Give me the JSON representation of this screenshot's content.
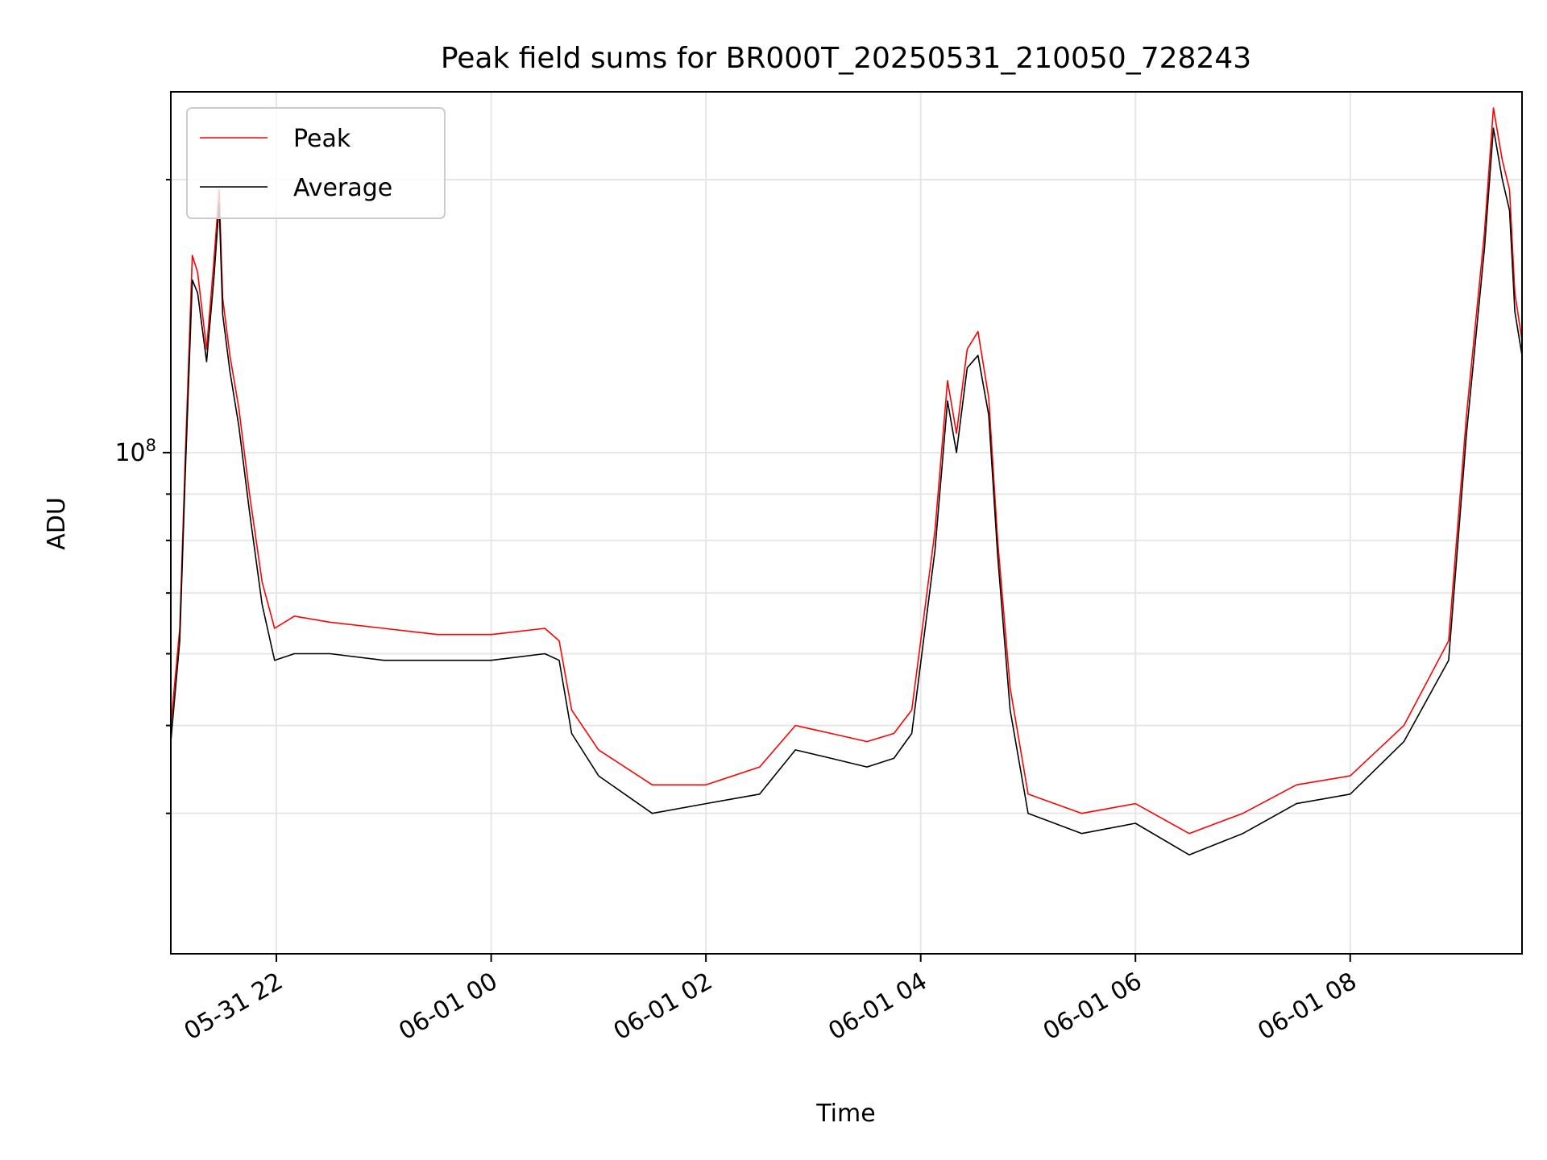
{
  "chart_data": {
    "type": "line",
    "title": "Peak field sums for BR000T_20250531_210050_728243",
    "xlabel": "Time",
    "ylabel": "ADU",
    "y_scale": "log",
    "ylim": [
      28000000,
      250000000
    ],
    "xlim": [
      "2025-05-31 21:01",
      "2025-06-01 09:36"
    ],
    "grid": true,
    "legend_position": "top-left",
    "x_ticks": [
      {
        "t": "2025-05-31 22:00",
        "label": "05-31 22"
      },
      {
        "t": "2025-06-01 00:00",
        "label": "06-01 00"
      },
      {
        "t": "2025-06-01 02:00",
        "label": "06-01 02"
      },
      {
        "t": "2025-06-01 04:00",
        "label": "06-01 04"
      },
      {
        "t": "2025-06-01 06:00",
        "label": "06-01 06"
      },
      {
        "t": "2025-06-01 08:00",
        "label": "06-01 08"
      }
    ],
    "y_major_ticks": [
      {
        "value": 100000000,
        "label_base": "10",
        "label_exp": "8"
      }
    ],
    "y_minor_ticks": [
      40000000,
      50000000,
      60000000,
      70000000,
      80000000,
      90000000,
      200000000
    ],
    "series": [
      {
        "name": "Peak",
        "color": "#ff0000",
        "points": [
          [
            "2025-05-31 21:01",
            50000000
          ],
          [
            "2025-05-31 21:06",
            64000000
          ],
          [
            "2025-05-31 21:09",
            98000000
          ],
          [
            "2025-05-31 21:13",
            165000000
          ],
          [
            "2025-05-31 21:16",
            158000000
          ],
          [
            "2025-05-31 21:21",
            130000000
          ],
          [
            "2025-05-31 21:25",
            162000000
          ],
          [
            "2025-05-31 21:28",
            195000000
          ],
          [
            "2025-05-31 21:30",
            148000000
          ],
          [
            "2025-05-31 21:34",
            128000000
          ],
          [
            "2025-05-31 21:39",
            112000000
          ],
          [
            "2025-05-31 21:45",
            90000000
          ],
          [
            "2025-05-31 21:52",
            72000000
          ],
          [
            "2025-05-31 21:59",
            64000000
          ],
          [
            "2025-05-31 22:10",
            66000000
          ],
          [
            "2025-05-31 22:30",
            65000000
          ],
          [
            "2025-05-31 23:00",
            64000000
          ],
          [
            "2025-05-31 23:30",
            63000000
          ],
          [
            "2025-06-01 00:00",
            63000000
          ],
          [
            "2025-06-01 00:30",
            64000000
          ],
          [
            "2025-06-01 00:38",
            62000000
          ],
          [
            "2025-06-01 00:45",
            52000000
          ],
          [
            "2025-06-01 01:00",
            47000000
          ],
          [
            "2025-06-01 01:30",
            43000000
          ],
          [
            "2025-06-01 02:00",
            43000000
          ],
          [
            "2025-06-01 02:30",
            45000000
          ],
          [
            "2025-06-01 02:50",
            50000000
          ],
          [
            "2025-06-01 03:10",
            49000000
          ],
          [
            "2025-06-01 03:30",
            48000000
          ],
          [
            "2025-06-01 03:45",
            49000000
          ],
          [
            "2025-06-01 03:55",
            52000000
          ],
          [
            "2025-06-01 04:08",
            82000000
          ],
          [
            "2025-06-01 04:15",
            120000000
          ],
          [
            "2025-06-01 04:20",
            105000000
          ],
          [
            "2025-06-01 04:26",
            130000000
          ],
          [
            "2025-06-01 04:32",
            136000000
          ],
          [
            "2025-06-01 04:38",
            115000000
          ],
          [
            "2025-06-01 04:43",
            80000000
          ],
          [
            "2025-06-01 04:50",
            55000000
          ],
          [
            "2025-06-01 05:00",
            42000000
          ],
          [
            "2025-06-01 05:30",
            40000000
          ],
          [
            "2025-06-01 06:00",
            41000000
          ],
          [
            "2025-06-01 06:30",
            38000000
          ],
          [
            "2025-06-01 07:00",
            40000000
          ],
          [
            "2025-06-01 07:30",
            43000000
          ],
          [
            "2025-06-01 08:00",
            44000000
          ],
          [
            "2025-06-01 08:30",
            50000000
          ],
          [
            "2025-06-01 08:55",
            62000000
          ],
          [
            "2025-06-01 09:05",
            110000000
          ],
          [
            "2025-06-01 09:15",
            175000000
          ],
          [
            "2025-06-01 09:20",
            240000000
          ],
          [
            "2025-06-01 09:25",
            210000000
          ],
          [
            "2025-06-01 09:29",
            195000000
          ],
          [
            "2025-06-01 09:32",
            150000000
          ],
          [
            "2025-06-01 09:36",
            133000000
          ]
        ]
      },
      {
        "name": "Average",
        "color": "#000000",
        "points": [
          [
            "2025-05-31 21:01",
            48000000
          ],
          [
            "2025-05-31 21:06",
            62000000
          ],
          [
            "2025-05-31 21:09",
            94000000
          ],
          [
            "2025-05-31 21:13",
            155000000
          ],
          [
            "2025-05-31 21:16",
            150000000
          ],
          [
            "2025-05-31 21:21",
            126000000
          ],
          [
            "2025-05-31 21:25",
            155000000
          ],
          [
            "2025-05-31 21:28",
            188000000
          ],
          [
            "2025-05-31 21:30",
            142000000
          ],
          [
            "2025-05-31 21:34",
            123000000
          ],
          [
            "2025-05-31 21:39",
            107000000
          ],
          [
            "2025-05-31 21:45",
            86000000
          ],
          [
            "2025-05-31 21:52",
            68000000
          ],
          [
            "2025-05-31 21:59",
            59000000
          ],
          [
            "2025-05-31 22:10",
            60000000
          ],
          [
            "2025-05-31 22:30",
            60000000
          ],
          [
            "2025-05-31 23:00",
            59000000
          ],
          [
            "2025-05-31 23:30",
            59000000
          ],
          [
            "2025-06-01 00:00",
            59000000
          ],
          [
            "2025-06-01 00:30",
            60000000
          ],
          [
            "2025-06-01 00:38",
            59000000
          ],
          [
            "2025-06-01 00:45",
            49000000
          ],
          [
            "2025-06-01 01:00",
            44000000
          ],
          [
            "2025-06-01 01:30",
            40000000
          ],
          [
            "2025-06-01 02:00",
            41000000
          ],
          [
            "2025-06-01 02:30",
            42000000
          ],
          [
            "2025-06-01 02:50",
            47000000
          ],
          [
            "2025-06-01 03:10",
            46000000
          ],
          [
            "2025-06-01 03:30",
            45000000
          ],
          [
            "2025-06-01 03:45",
            46000000
          ],
          [
            "2025-06-01 03:55",
            49000000
          ],
          [
            "2025-06-01 04:08",
            78000000
          ],
          [
            "2025-06-01 04:15",
            114000000
          ],
          [
            "2025-06-01 04:20",
            100000000
          ],
          [
            "2025-06-01 04:26",
            124000000
          ],
          [
            "2025-06-01 04:32",
            128000000
          ],
          [
            "2025-06-01 04:38",
            110000000
          ],
          [
            "2025-06-01 04:43",
            77000000
          ],
          [
            "2025-06-01 04:50",
            52000000
          ],
          [
            "2025-06-01 05:00",
            40000000
          ],
          [
            "2025-06-01 05:30",
            38000000
          ],
          [
            "2025-06-01 06:00",
            39000000
          ],
          [
            "2025-06-01 06:30",
            36000000
          ],
          [
            "2025-06-01 07:00",
            38000000
          ],
          [
            "2025-06-01 07:30",
            41000000
          ],
          [
            "2025-06-01 08:00",
            42000000
          ],
          [
            "2025-06-01 08:30",
            48000000
          ],
          [
            "2025-06-01 08:55",
            59000000
          ],
          [
            "2025-06-01 09:05",
            105000000
          ],
          [
            "2025-06-01 09:15",
            168000000
          ],
          [
            "2025-06-01 09:20",
            228000000
          ],
          [
            "2025-06-01 09:25",
            200000000
          ],
          [
            "2025-06-01 09:29",
            185000000
          ],
          [
            "2025-06-01 09:32",
            143000000
          ],
          [
            "2025-06-01 09:36",
            128000000
          ]
        ]
      }
    ]
  }
}
